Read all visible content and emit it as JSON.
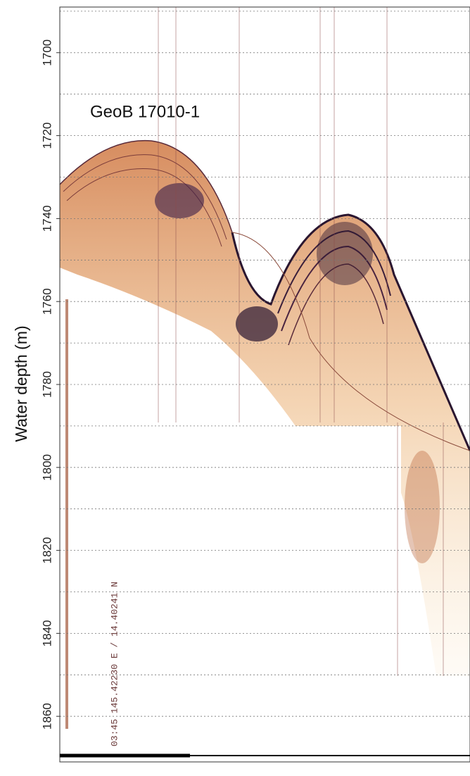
{
  "chart_data": {
    "type": "profile",
    "title": "GeoB 17010-1",
    "annotation": "03:45 145.42230 E /  14.40241 N",
    "y_label": "Water depth (m)",
    "ylim": [
      1689,
      1871
    ],
    "yticks": [
      1700,
      1720,
      1740,
      1760,
      1780,
      1800,
      1820,
      1840,
      1860
    ],
    "minor_yticks": [
      1690,
      1710,
      1730,
      1750,
      1770,
      1790,
      1810,
      1830,
      1850
    ],
    "grid": true
  }
}
